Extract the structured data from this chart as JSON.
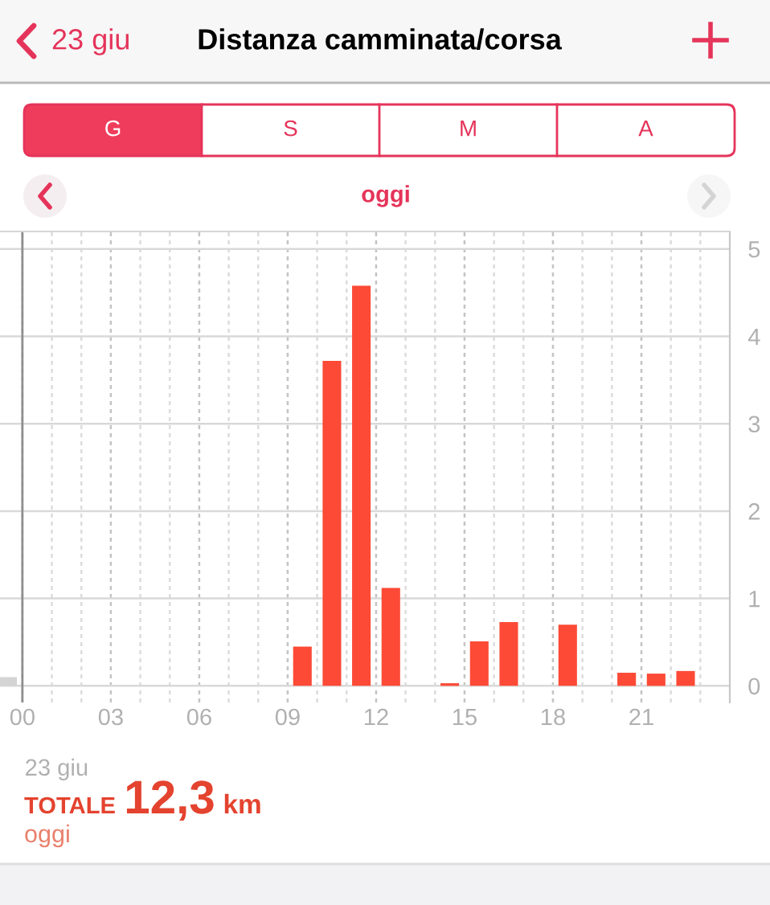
{
  "chart_data": {
    "type": "bar",
    "title": "Distanza camminata/corsa",
    "subtitle": "oggi",
    "series": [
      {
        "color": "#fc4a36",
        "x": [
          9.5,
          10.5,
          11.5,
          12.5,
          14.5,
          15.5,
          16.5,
          18.5,
          20.5,
          21.5,
          22.5
        ],
        "values": [
          0.45,
          3.72,
          4.58,
          1.12,
          0.03,
          0.51,
          0.73,
          0.7,
          0.15,
          0.14,
          0.17
        ]
      },
      {
        "color": "#d4d4d4",
        "x": [
          -0.5
        ],
        "values": [
          0.1
        ]
      }
    ],
    "xlim": [
      -0.76,
      24
    ],
    "xticks": [
      {
        "value": 0,
        "label": "00"
      },
      {
        "value": 1,
        "label": null
      },
      {
        "value": 2,
        "label": null
      },
      {
        "value": 3,
        "label": "03"
      },
      {
        "value": 4,
        "label": null
      },
      {
        "value": 5,
        "label": null
      },
      {
        "value": 6,
        "label": "06"
      },
      {
        "value": 7,
        "label": null
      },
      {
        "value": 8,
        "label": null
      },
      {
        "value": 9,
        "label": "09"
      },
      {
        "value": 10,
        "label": null
      },
      {
        "value": 11,
        "label": null
      },
      {
        "value": 12,
        "label": "12"
      },
      {
        "value": 13,
        "label": null
      },
      {
        "value": 14,
        "label": null
      },
      {
        "value": 15,
        "label": "15"
      },
      {
        "value": 16,
        "label": null
      },
      {
        "value": 17,
        "label": null
      },
      {
        "value": 18,
        "label": "18"
      },
      {
        "value": 19,
        "label": null
      },
      {
        "value": 20,
        "label": null
      },
      {
        "value": 21,
        "label": "21"
      },
      {
        "value": 22,
        "label": null
      },
      {
        "value": 23,
        "label": null
      }
    ],
    "ylim": [
      -0.19,
      5.2
    ],
    "yticks": [
      0,
      1,
      2,
      3,
      4,
      5
    ],
    "grid": true,
    "ref_lines": [
      {
        "axis": "x",
        "value": 0,
        "label": "23 giu",
        "color": "#8e8e8e"
      }
    ],
    "annotations": [
      "23 giu",
      "G",
      "S",
      "M",
      "A",
      "TOTALE",
      "12,3",
      "km",
      "oggi"
    ]
  }
}
